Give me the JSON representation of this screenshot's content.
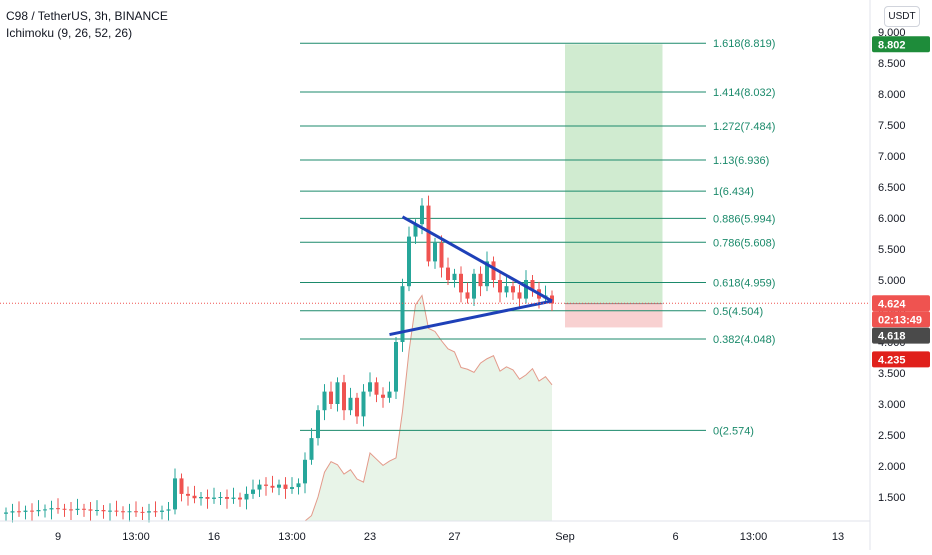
{
  "header": {
    "title": "C98 / TetherUS, 3h, BINANCE",
    "indicator": "Ichimoku (9, 26, 52, 26)"
  },
  "currency_button": "USDT",
  "colors": {
    "fib_line": "#1b8a6b",
    "fib_text": "#1b8a6b",
    "candle_up": "#26a69a",
    "candle_down": "#ef5350",
    "triangle": "#1e40b8",
    "profit_zone": "#c8e8c8",
    "loss_zone": "#f7c9c9",
    "price_line": "#ef5350",
    "cloud": "#d8ecd8",
    "lagging": "#e39a8a"
  },
  "chart_data": {
    "type": "candlestick",
    "symbol": "C98 / TetherUS",
    "timeframe": "3h",
    "exchange": "BINANCE",
    "y_axis": {
      "min": 1.0,
      "max": 9.0,
      "ticks": [
        "9.000",
        "8.500",
        "8.000",
        "7.500",
        "7.000",
        "6.500",
        "6.000",
        "5.500",
        "5.000",
        "4.500",
        "4.000",
        "3.500",
        "3.000",
        "2.500",
        "2.000",
        "1.500"
      ],
      "tick_values": [
        9.0,
        8.5,
        8.0,
        7.5,
        7.0,
        6.5,
        6.0,
        5.5,
        5.0,
        4.5,
        4.0,
        3.5,
        3.0,
        2.5,
        2.0,
        1.5
      ]
    },
    "x_axis": {
      "ticks": [
        "9",
        "13:00",
        "16",
        "13:00",
        "23",
        "27",
        "Sep",
        "6",
        "13:00",
        "13"
      ],
      "tick_index": [
        8,
        20,
        32,
        44,
        56,
        69,
        86,
        103,
        115,
        128
      ]
    },
    "fib_levels": [
      {
        "label": "1.618(8.819)",
        "value": 8.819
      },
      {
        "label": "1.414(8.032)",
        "value": 8.032
      },
      {
        "label": "1.272(7.484)",
        "value": 7.484
      },
      {
        "label": "1.13(6.936)",
        "value": 6.936
      },
      {
        "label": "1(6.434)",
        "value": 6.434
      },
      {
        "label": "0.886(5.994)",
        "value": 5.994
      },
      {
        "label": "0.786(5.608)",
        "value": 5.608
      },
      {
        "label": "0.618(4.959)",
        "value": 4.959
      },
      {
        "label": "0.5(4.504)",
        "value": 4.504
      },
      {
        "label": "0.382(4.048)",
        "value": 4.048
      },
      {
        "label": "0(2.574)",
        "value": 2.574
      }
    ],
    "price_labels": [
      {
        "text": "8.802",
        "value": 8.802,
        "color": "#1e8c3a"
      },
      {
        "text": "4.624",
        "value": 4.624,
        "color": "#ef5350"
      },
      {
        "text": "02:13:49",
        "value": 4.624,
        "color": "#ef5350"
      },
      {
        "text": "4.618",
        "value": 4.618,
        "color": "#4a4a4a"
      },
      {
        "text": "4.235",
        "value": 4.235,
        "color": "#e0201b"
      }
    ],
    "current_price": 4.624,
    "triangle": {
      "upper_start": {
        "i": 61,
        "v": 6.02
      },
      "upper_end": {
        "i": 84,
        "v": 4.66
      },
      "lower_start": {
        "i": 59,
        "v": 4.12
      },
      "lower_end": {
        "i": 84,
        "v": 4.66
      }
    },
    "position": {
      "start_i": 86,
      "end_i": 101,
      "entry": 4.618,
      "target": 8.802,
      "stop": 4.235
    },
    "closes": [
      1.25,
      1.27,
      1.26,
      1.28,
      1.27,
      1.29,
      1.3,
      1.32,
      1.31,
      1.3,
      1.29,
      1.31,
      1.3,
      1.28,
      1.29,
      1.27,
      1.28,
      1.27,
      1.26,
      1.27,
      1.26,
      1.25,
      1.27,
      1.26,
      1.28,
      1.3,
      1.8,
      1.55,
      1.52,
      1.48,
      1.5,
      1.47,
      1.49,
      1.5,
      1.47,
      1.49,
      1.46,
      1.55,
      1.62,
      1.7,
      1.68,
      1.65,
      1.7,
      1.63,
      1.66,
      1.72,
      2.1,
      2.45,
      2.9,
      3.2,
      3.0,
      3.35,
      2.9,
      3.1,
      2.8,
      3.2,
      3.35,
      3.15,
      3.1,
      3.2,
      4.0,
      4.9,
      5.7,
      5.9,
      6.2,
      5.3,
      5.6,
      5.2,
      5.0,
      5.1,
      4.8,
      4.7,
      5.1,
      4.9,
      5.3,
      5.0,
      4.8,
      4.9,
      4.8,
      4.7,
      5.0,
      4.85,
      4.7,
      4.75,
      4.62
    ]
  }
}
